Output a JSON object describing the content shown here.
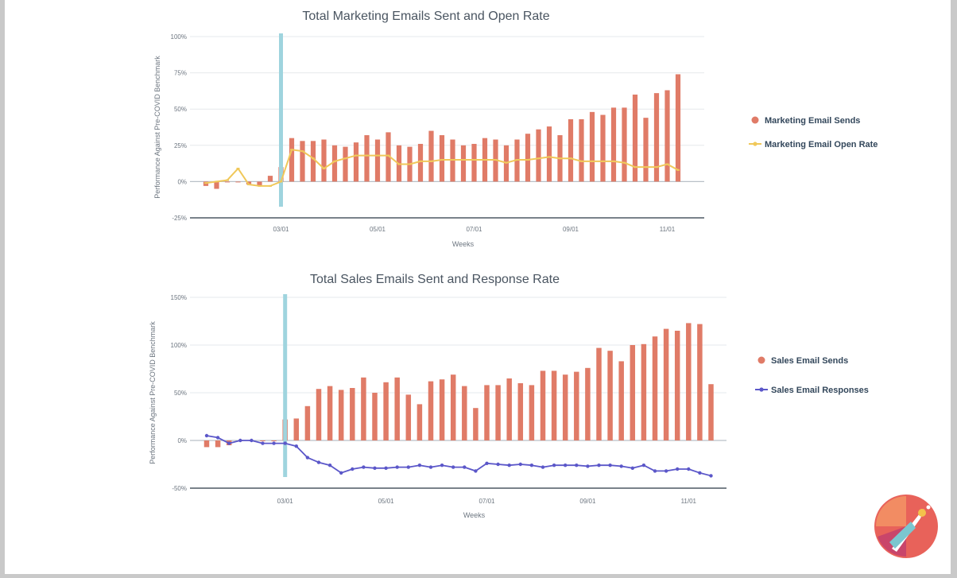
{
  "chart_data": [
    {
      "type": "bar",
      "title": "Total Marketing Emails Sent and Open Rate",
      "xlabel": "Weeks",
      "ylabel": "Performance Against Pre-COVID Benchmark",
      "ylim": [
        -25,
        100
      ],
      "yticks": [
        "100%",
        "75%",
        "50%",
        "25%",
        "0%",
        "-25%"
      ],
      "ytick_values": [
        100,
        75,
        50,
        25,
        0,
        -25
      ],
      "xticks": [
        {
          "label": "03/01",
          "index": 7
        },
        {
          "label": "05/01",
          "index": 16
        },
        {
          "label": "07/01",
          "index": 25
        },
        {
          "label": "09/01",
          "index": 34
        },
        {
          "label": "11/01",
          "index": 43
        }
      ],
      "marker_index": 7,
      "marker_color": "#9fd4de",
      "grid": true,
      "legend_position": "right",
      "series": [
        {
          "name": "Marketing Email Sends",
          "kind": "bar",
          "color": "#e07b67",
          "values": [
            -3,
            -5,
            0,
            0,
            -2,
            -3,
            4,
            10,
            30,
            28,
            28,
            29,
            25,
            24,
            27,
            32,
            29,
            34,
            25,
            24,
            26,
            35,
            32,
            29,
            25,
            26,
            30,
            29,
            25,
            29,
            33,
            36,
            38,
            32,
            43,
            43,
            48,
            46,
            51,
            51,
            60,
            44,
            61,
            63,
            74
          ]
        },
        {
          "name": "Marketing Email Open Rate",
          "kind": "line",
          "color": "#f0c85a",
          "values": [
            -1,
            0,
            1,
            9,
            -2,
            -3,
            -3,
            0,
            22,
            21,
            16,
            9,
            14,
            16,
            18,
            18,
            18,
            18,
            12,
            12,
            14,
            14,
            15,
            15,
            15,
            15,
            15,
            15,
            13,
            15,
            15,
            16,
            17,
            16,
            16,
            14,
            14,
            14,
            14,
            13,
            10,
            10,
            10,
            12,
            8
          ]
        }
      ]
    },
    {
      "type": "bar",
      "title": "Total Sales Emails Sent and Response Rate",
      "xlabel": "Weeks",
      "ylabel": "Performance Against Pre-COVID Benchmark",
      "ylim": [
        -50,
        150
      ],
      "yticks": [
        "150%",
        "100%",
        "50%",
        "0%",
        "-50%"
      ],
      "ytick_values": [
        150,
        100,
        50,
        0,
        -50
      ],
      "xticks": [
        {
          "label": "03/01",
          "index": 7
        },
        {
          "label": "05/01",
          "index": 16
        },
        {
          "label": "07/01",
          "index": 25
        },
        {
          "label": "09/01",
          "index": 34
        },
        {
          "label": "11/01",
          "index": 43
        }
      ],
      "marker_index": 7,
      "marker_color": "#9fd4de",
      "grid": true,
      "legend_position": "right",
      "series": [
        {
          "name": "Sales Email Sends",
          "kind": "bar",
          "color": "#e07b67",
          "values": [
            -7,
            -7,
            -5,
            0,
            0,
            0,
            0,
            22,
            23,
            36,
            54,
            57,
            53,
            55,
            66,
            50,
            61,
            66,
            48,
            38,
            62,
            64,
            69,
            57,
            34,
            58,
            58,
            65,
            60,
            58,
            73,
            73,
            69,
            72,
            76,
            97,
            94,
            83,
            100,
            101,
            109,
            117,
            115,
            123,
            122,
            59
          ]
        },
        {
          "name": "Sales Email Responses",
          "kind": "line",
          "color": "#5b57c9",
          "values": [
            5,
            3,
            -3,
            0,
            0,
            -3,
            -3,
            -3,
            -6,
            -18,
            -23,
            -26,
            -34,
            -30,
            -28,
            -29,
            -29,
            -28,
            -28,
            -26,
            -28,
            -26,
            -28,
            -28,
            -32,
            -24,
            -25,
            -26,
            -25,
            -26,
            -28,
            -26,
            -26,
            -26,
            -27,
            -26,
            -26,
            -27,
            -29,
            -26,
            -32,
            -32,
            -30,
            -30,
            -34,
            -37
          ]
        }
      ]
    }
  ]
}
